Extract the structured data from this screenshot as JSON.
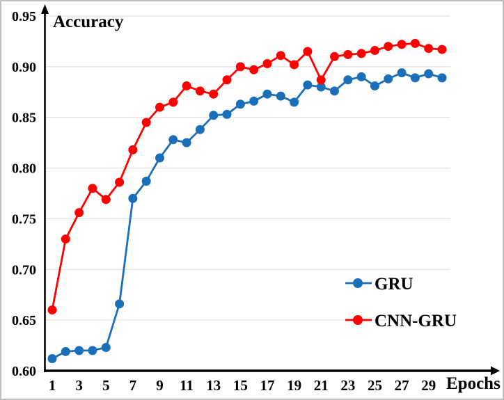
{
  "chart_data": {
    "type": "line",
    "title": "",
    "xlabel": "Epochs",
    "ylabel": "Accuracy",
    "x": [
      1,
      2,
      3,
      4,
      5,
      6,
      7,
      8,
      9,
      10,
      11,
      12,
      13,
      14,
      15,
      16,
      17,
      18,
      19,
      20,
      21,
      22,
      23,
      24,
      25,
      26,
      27,
      28,
      29,
      30
    ],
    "series": [
      {
        "name": "GRU",
        "color": "#1B6EB8",
        "values": [
          0.612,
          0.619,
          0.62,
          0.62,
          0.623,
          0.666,
          0.77,
          0.787,
          0.81,
          0.828,
          0.825,
          0.838,
          0.852,
          0.853,
          0.863,
          0.866,
          0.873,
          0.871,
          0.865,
          0.882,
          0.88,
          0.876,
          0.887,
          0.89,
          0.881,
          0.888,
          0.894,
          0.889,
          0.893,
          0.889
        ]
      },
      {
        "name": "CNN-GRU",
        "color": "#FF0000",
        "values": [
          0.66,
          0.73,
          0.756,
          0.78,
          0.769,
          0.786,
          0.818,
          0.845,
          0.86,
          0.865,
          0.881,
          0.876,
          0.873,
          0.887,
          0.9,
          0.897,
          0.903,
          0.911,
          0.902,
          0.915,
          0.887,
          0.91,
          0.912,
          0.913,
          0.916,
          0.92,
          0.922,
          0.923,
          0.918,
          0.917
        ]
      }
    ],
    "xlim": [
      1,
      30
    ],
    "ylim": [
      0.6,
      0.95
    ],
    "yticks": [
      0.6,
      0.65,
      0.7,
      0.75,
      0.8,
      0.85,
      0.9,
      0.95
    ],
    "ytick_labels": [
      "0.60",
      "0.65",
      "0.70",
      "0.75",
      "0.80",
      "0.85",
      "0.90",
      "0.95"
    ],
    "xtick_positions": [
      1,
      3,
      5,
      7,
      9,
      11,
      13,
      15,
      17,
      19,
      21,
      23,
      25,
      27,
      29
    ],
    "xtick_labels": [
      "1",
      "3",
      "5",
      "7",
      "9",
      "11",
      "13",
      "15",
      "17",
      "19",
      "21",
      "23",
      "25",
      "27",
      "29"
    ],
    "grid": "horizontal-gridlines-on",
    "legend_position": "inside-lower-right",
    "axis_color": "#000000",
    "grid_color": "#D9D9D9",
    "background": "#FFFFFF",
    "border_color": "#BFBFBF"
  }
}
